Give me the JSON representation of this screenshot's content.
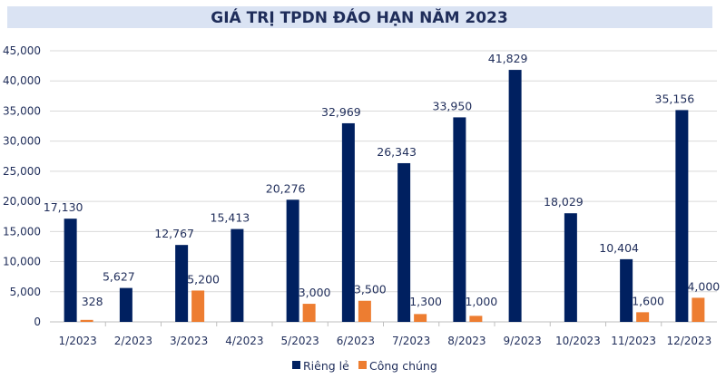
{
  "chart_data": {
    "type": "bar",
    "title": "GIÁ TRỊ TPDN ĐÁO HẠN NĂM 2023",
    "xlabel": "",
    "ylabel": "",
    "ylim": [
      0,
      45000
    ],
    "yticks": [
      0,
      5000,
      10000,
      15000,
      20000,
      25000,
      30000,
      35000,
      40000,
      45000
    ],
    "ytick_labels": [
      "0",
      "5,000",
      "10,000",
      "15,000",
      "20,000",
      "25,000",
      "30,000",
      "35,000",
      "40,000",
      "45,000"
    ],
    "grid": true,
    "legend_position": "bottom",
    "categories": [
      "1/2023",
      "2/2023",
      "3/2023",
      "4/2023",
      "5/2023",
      "6/2023",
      "7/2023",
      "8/2023",
      "9/2023",
      "10/2023",
      "11/2023",
      "12/2023"
    ],
    "series": [
      {
        "name": "Riêng lẻ",
        "color": "#002060",
        "values": [
          17130,
          5627,
          12767,
          15413,
          20276,
          32969,
          26343,
          33950,
          41829,
          18029,
          10404,
          35156
        ],
        "labels": [
          "17,130",
          "5,627",
          "12,767",
          "15,413",
          "20,276",
          "32,969",
          "26,343",
          "33,950",
          "41,829",
          "18,029",
          "10,404",
          "35,156"
        ]
      },
      {
        "name": "Công chúng",
        "color": "#ed7d31",
        "values": [
          328,
          null,
          5200,
          null,
          3000,
          3500,
          1300,
          1000,
          null,
          null,
          1600,
          4000
        ],
        "labels": [
          "328",
          null,
          "5,200",
          null,
          "3,000",
          "3,500",
          "1,300",
          "1,000",
          null,
          null,
          "1,600",
          "4,000"
        ]
      }
    ]
  }
}
